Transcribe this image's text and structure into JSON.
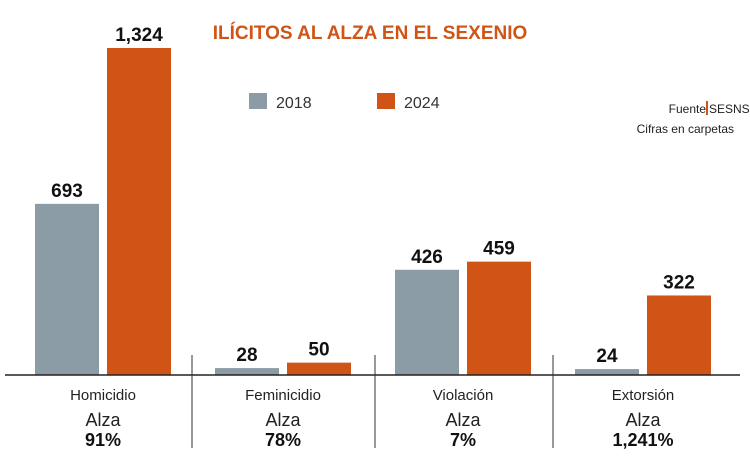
{
  "chart_data": {
    "type": "bar",
    "title": "ILÍCITOS AL ALZA EN EL SEXENIO",
    "categories": [
      "Homicidio",
      "Feminicidio",
      "Violación",
      "Extorsión"
    ],
    "series": [
      {
        "name": "2018",
        "values": [
          693,
          28,
          426,
          24
        ],
        "labels": [
          "693",
          "28",
          "426",
          "24"
        ],
        "color": "#8c9ca7"
      },
      {
        "name": "2024",
        "values": [
          1324,
          50,
          459,
          322
        ],
        "labels": [
          "1,324",
          "50",
          "459",
          "322"
        ],
        "color": "#cf5416"
      }
    ],
    "increase_label": "Alza",
    "increases": [
      "91%",
      "78%",
      "7%",
      "1,241%"
    ],
    "ylim": [
      0,
      1324
    ],
    "grid": false,
    "legend": "top-center"
  },
  "source": {
    "label": "Fuente",
    "name": "SESNSP",
    "note": "Cifras en carpetas"
  }
}
